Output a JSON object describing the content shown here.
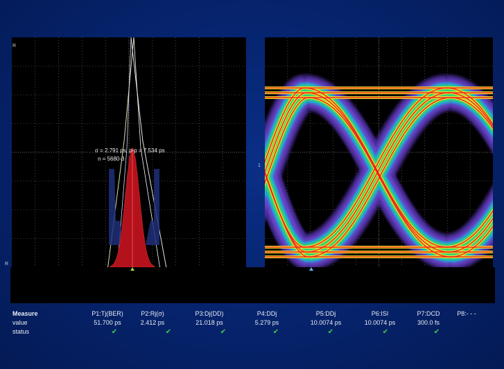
{
  "histogram": {
    "annotation_line1": "σ = 2.791 ps, p-p = 7.534 ps",
    "annotation_line2": "n = 5680-3",
    "ref_top": "R",
    "ref_bottom": "R"
  },
  "eye": {
    "ch_marker": "1"
  },
  "measure": {
    "header_label": "Measure",
    "value_label": "value",
    "status_label": "status",
    "columns": [
      {
        "name": "P1:Tj(BER)",
        "value": "51.700 ps",
        "status": "✔"
      },
      {
        "name": "P2:Rj(σ)",
        "value": "2.412 ps",
        "status": "✔"
      },
      {
        "name": "P3:Dj(DD)",
        "value": "21.018 ps",
        "status": "✔"
      },
      {
        "name": "P4:DDj",
        "value": "5.279 ps",
        "status": "✔"
      },
      {
        "name": "P5:DDj",
        "value": "10.0074 ps",
        "status": "✔"
      },
      {
        "name": "P6:ISI",
        "value": "10.0074 ps",
        "status": "✔"
      },
      {
        "name": "P7:DCD",
        "value": "300.0 fs",
        "status": "✔"
      },
      {
        "name": "P8:- - -",
        "value": "",
        "status": ""
      }
    ]
  },
  "colors": {
    "background": "#062571",
    "grid": "#7a7a7a",
    "histogram_fill": "#b3121c",
    "ref_line": "#c0141a"
  }
}
